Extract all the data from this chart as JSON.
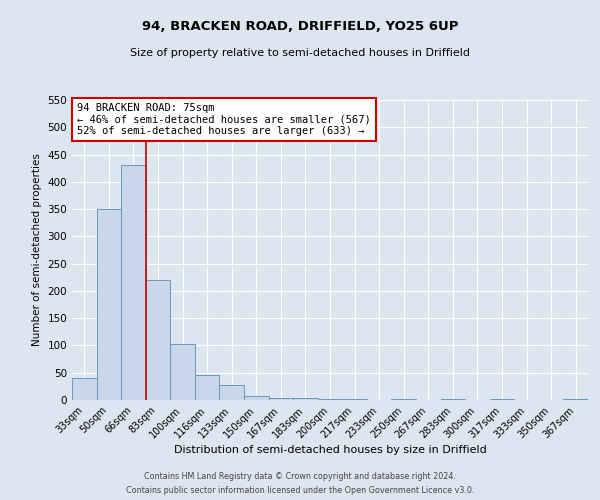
{
  "title": "94, BRACKEN ROAD, DRIFFIELD, YO25 6UP",
  "subtitle": "Size of property relative to semi-detached houses in Driffield",
  "xlabel": "Distribution of semi-detached houses by size in Driffield",
  "ylabel": "Number of semi-detached properties",
  "categories": [
    "33sqm",
    "50sqm",
    "66sqm",
    "83sqm",
    "100sqm",
    "116sqm",
    "133sqm",
    "150sqm",
    "167sqm",
    "183sqm",
    "200sqm",
    "217sqm",
    "233sqm",
    "250sqm",
    "267sqm",
    "283sqm",
    "300sqm",
    "317sqm",
    "333sqm",
    "350sqm",
    "367sqm"
  ],
  "values": [
    40,
    350,
    430,
    220,
    103,
    45,
    27,
    8,
    4,
    3,
    2,
    2,
    0,
    2,
    0,
    2,
    0,
    2,
    0,
    0,
    2
  ],
  "bar_color": "#c8d8ea",
  "bar_edge_color": "#6699bb",
  "property_line_x": 2.5,
  "property_line_color": "#cc0000",
  "annotation_title": "94 BRACKEN ROAD: 75sqm",
  "annotation_line1": "← 46% of semi-detached houses are smaller (567)",
  "annotation_line2": "52% of semi-detached houses are larger (633) →",
  "annotation_box_facecolor": "white",
  "annotation_box_edgecolor": "#cc0000",
  "ylim": [
    0,
    550
  ],
  "yticks": [
    0,
    50,
    100,
    150,
    200,
    250,
    300,
    350,
    400,
    450,
    500,
    550
  ],
  "background_color": "#dde6f0",
  "plot_bg_color": "#dde6f0",
  "grid_color": "white",
  "footer_line1": "Contains HM Land Registry data © Crown copyright and database right 2024.",
  "footer_line2": "Contains public sector information licensed under the Open Government Licence v3.0.",
  "title_fontsize": 9.5,
  "subtitle_fontsize": 8,
  "ylabel_fontsize": 7.5,
  "xlabel_fontsize": 8,
  "tick_fontsize": 7,
  "ytick_fontsize": 7.5,
  "annotation_fontsize": 7.5,
  "footer_fontsize": 5.8
}
